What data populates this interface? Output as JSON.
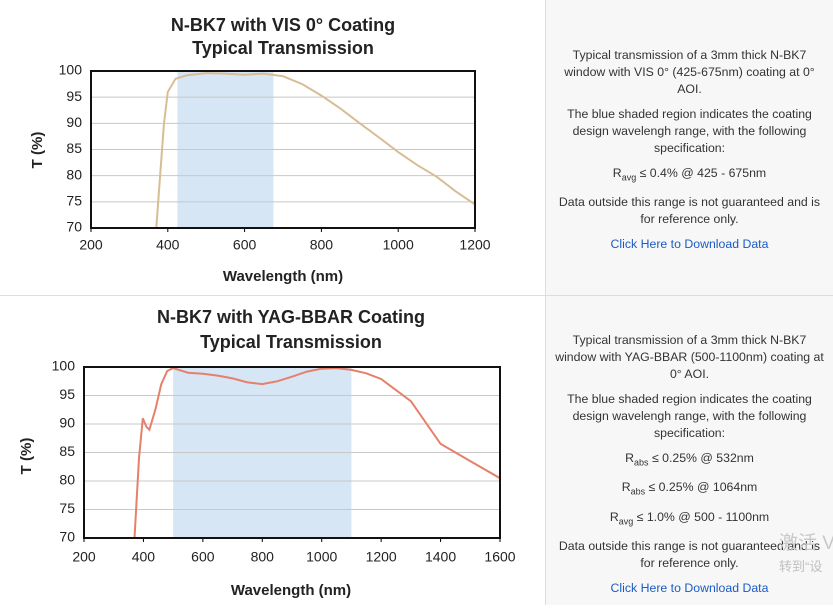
{
  "chart_data": [
    {
      "type": "line",
      "title": "N-BK7 with VIS 0° Coating",
      "subtitle": "Typical Transmission",
      "x_label": "Wavelength (nm)",
      "y_label": "T (%)",
      "x": [
        370,
        380,
        390,
        400,
        420,
        450,
        500,
        550,
        600,
        650,
        700,
        750,
        800,
        850,
        900,
        950,
        1000,
        1050,
        1100,
        1150,
        1200
      ],
      "values": [
        70,
        80,
        90,
        96,
        98.5,
        99.2,
        99.6,
        99.5,
        99.3,
        99.5,
        99,
        97.5,
        95.3,
        92.8,
        90,
        87.3,
        84.5,
        82,
        79.8,
        77,
        74.5
      ],
      "color": "#d8bd94",
      "shade": [
        425,
        675
      ],
      "shade_color": "#d6e6f4",
      "xlim": [
        200,
        1200
      ],
      "xticks": [
        200,
        400,
        600,
        800,
        1000,
        1200
      ],
      "ylim": [
        70,
        100
      ],
      "yticks": [
        70,
        75,
        80,
        85,
        90,
        95,
        100
      ],
      "grid": true
    },
    {
      "type": "line",
      "title": "N-BK7 with YAG-BBAR Coating",
      "subtitle": "Typical Transmission",
      "x_label": "Wavelength (nm)",
      "y_label": "T (%)",
      "x": [
        370,
        385,
        398,
        410,
        420,
        440,
        460,
        480,
        500,
        550,
        600,
        650,
        700,
        750,
        800,
        850,
        900,
        950,
        1000,
        1050,
        1100,
        1150,
        1200,
        1300,
        1400,
        1500,
        1600
      ],
      "values": [
        70,
        84,
        91,
        89.5,
        89,
        92.5,
        97,
        99.3,
        99.8,
        99,
        98.8,
        98.5,
        98,
        97.3,
        97,
        97.5,
        98.3,
        99.2,
        99.7,
        99.8,
        99.5,
        98.9,
        97.9,
        94,
        86.5,
        83.5,
        80.5
      ],
      "color": "#e5806b",
      "shade": [
        500,
        1100
      ],
      "shade_color": "#d6e6f4",
      "xlim": [
        200,
        1600
      ],
      "xticks": [
        200,
        400,
        600,
        800,
        1000,
        1200,
        1400,
        1600
      ],
      "ylim": [
        70,
        100
      ],
      "yticks": [
        70,
        75,
        80,
        85,
        90,
        95,
        100
      ],
      "grid": true
    }
  ],
  "panels": [
    {
      "intro": "Typical transmission of a 3mm thick N-BK7 window with VIS 0° (425-675nm) coating at 0° AOI.",
      "shade_note": "The blue shaded region indicates the coating design wavelengh range, with the following specification:",
      "specs": [
        {
          "symbol": "R",
          "subscript": "avg",
          "text": "≤ 0.4% @ 425 - 675nm"
        }
      ],
      "disclaimer": "Data outside this range is not guaranteed and is for reference only.",
      "link": "Click Here to Download Data"
    },
    {
      "intro": "Typical transmission of a 3mm thick N-BK7 window with YAG-BBAR (500-1100nm) coating at 0° AOI.",
      "shade_note": "The blue shaded region indicates the coating design wavelengh range, with the following specification:",
      "specs": [
        {
          "symbol": "R",
          "subscript": "abs",
          "text": "≤ 0.25% @ 532nm"
        },
        {
          "symbol": "R",
          "subscript": "abs",
          "text": "≤ 0.25% @ 1064nm"
        },
        {
          "symbol": "R",
          "subscript": "avg",
          "text": "≤ 1.0% @ 500 - 1100nm"
        }
      ],
      "disclaimer": "Data outside this range is not guaranteed and is for reference only.",
      "link": "Click Here to Download Data"
    }
  ],
  "watermark": {
    "line1": "激活 V",
    "line2": "转到“设"
  }
}
